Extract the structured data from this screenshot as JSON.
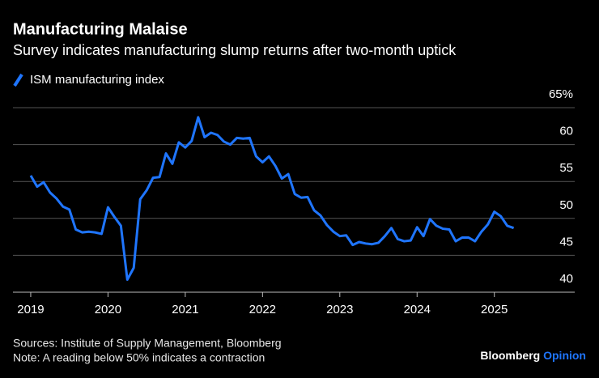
{
  "chart_data": {
    "type": "line",
    "title": "Manufacturing Malaise",
    "subtitle": "Survey indicates manufacturing slump returns after two-month uptick",
    "series": [
      {
        "name": "ISM manufacturing index",
        "color": "#1f75fe",
        "x": [
          2019,
          2019.083,
          2019.167,
          2019.25,
          2019.333,
          2019.417,
          2019.5,
          2019.583,
          2019.667,
          2019.75,
          2019.833,
          2019.917,
          2020,
          2020.083,
          2020.167,
          2020.25,
          2020.333,
          2020.417,
          2020.5,
          2020.583,
          2020.667,
          2020.75,
          2020.833,
          2020.917,
          2021,
          2021.083,
          2021.167,
          2021.25,
          2021.333,
          2021.417,
          2021.5,
          2021.583,
          2021.667,
          2021.75,
          2021.833,
          2021.917,
          2022,
          2022.083,
          2022.167,
          2022.25,
          2022.333,
          2022.417,
          2022.5,
          2022.583,
          2022.667,
          2022.75,
          2022.833,
          2022.917,
          2023,
          2023.083,
          2023.167,
          2023.25,
          2023.333,
          2023.417,
          2023.5,
          2023.583,
          2023.667,
          2023.75,
          2023.833,
          2023.917,
          2024,
          2024.083,
          2024.167,
          2024.25,
          2024.333,
          2024.417,
          2024.5,
          2024.583,
          2024.667,
          2024.75,
          2024.833,
          2024.917,
          2025,
          2025.083,
          2025.167,
          2025.25
        ],
        "values": [
          55.8,
          54.3,
          54.9,
          53.5,
          52.7,
          51.6,
          51.2,
          48.5,
          48.1,
          48.2,
          48.1,
          47.9,
          51.5,
          50.2,
          49.0,
          41.7,
          43.3,
          52.6,
          53.8,
          55.5,
          55.6,
          58.8,
          57.4,
          60.3,
          59.6,
          60.5,
          63.7,
          61.0,
          61.6,
          61.3,
          60.4,
          60.0,
          60.9,
          60.8,
          60.9,
          58.4,
          57.6,
          58.4,
          57.1,
          55.4,
          56.0,
          53.3,
          52.8,
          52.9,
          51.1,
          50.4,
          49.1,
          48.2,
          47.6,
          47.7,
          46.4,
          46.8,
          46.6,
          46.5,
          46.7,
          47.6,
          48.7,
          47.2,
          46.9,
          47.0,
          48.8,
          47.6,
          49.9,
          49.0,
          48.6,
          48.5,
          46.9,
          47.4,
          47.4,
          46.9,
          48.2,
          49.2,
          50.9,
          50.3,
          49.0,
          48.7
        ]
      }
    ],
    "xlim": [
      2018.77,
      2026.04
    ],
    "xticks": [
      2019,
      2020,
      2021,
      2022,
      2023,
      2024,
      2025
    ],
    "ylim": [
      40,
      65
    ],
    "yticks": [
      40,
      45,
      50,
      55,
      60,
      {
        "value": 65,
        "label": "65%"
      }
    ],
    "grid": true,
    "source": "Sources: Institute of Supply Management, Bloomberg",
    "note": "Note: A reading below 50% indicates a contraction",
    "brand": "Bloomberg",
    "brand_suffix": "Opinion"
  }
}
